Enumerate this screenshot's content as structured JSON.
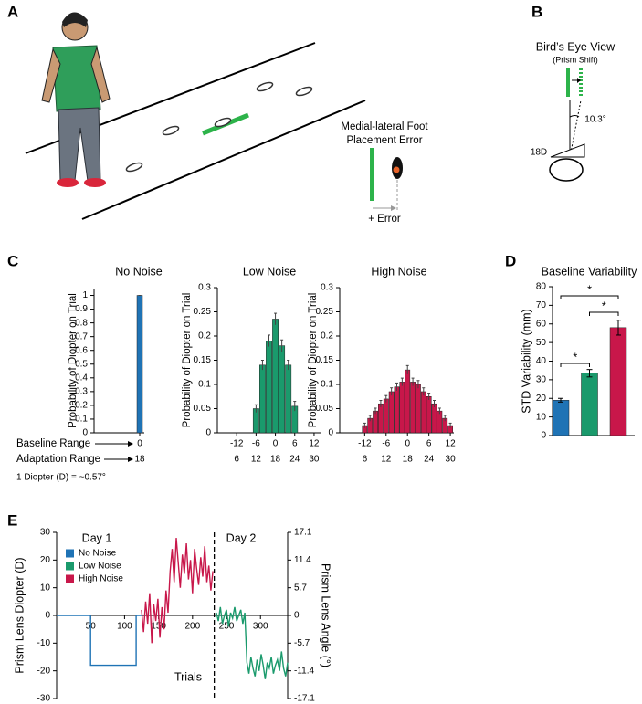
{
  "panel_letters": [
    "A",
    "B",
    "C",
    "D",
    "E"
  ],
  "panel_a": {
    "annotation": [
      "Medial-lateral Foot",
      "Placement Error"
    ],
    "error_label": "+ Error"
  },
  "panel_b": {
    "title": "Bird’s Eye View",
    "subtitle": "(Prism Shift)",
    "angle_label": "10.3°",
    "prism_label": "18D"
  },
  "panel_c_notes": {
    "baseline_label": "Baseline Range",
    "adaptation_label": "Adaptation Range",
    "conversion": "1 Diopter (D) = ~0.57°"
  },
  "chart_data": [
    {
      "type": "histbar",
      "title": "No Noise",
      "y_label": "Probability of Diopter on Trial",
      "color": "#1f73b5",
      "x": [
        0
      ],
      "values": [
        1
      ],
      "errors": [
        0
      ],
      "xlim": [
        -10,
        1
      ],
      "xticks": [
        0
      ],
      "adaptation_ticks": [
        {
          "value": 0,
          "label": "18"
        }
      ],
      "ylim": [
        0,
        1.05
      ],
      "yticks": [
        0,
        0.1,
        0.2,
        0.3,
        0.4,
        0.5,
        0.6,
        0.7,
        0.8,
        0.9,
        1
      ]
    },
    {
      "type": "histbar",
      "title": "Low Noise",
      "y_label": "Probability of Diopter on Trial",
      "color": "#1a9a6c",
      "x": [
        -6,
        -4,
        -2,
        0,
        2,
        4,
        6
      ],
      "values": [
        0.05,
        0.14,
        0.19,
        0.235,
        0.18,
        0.14,
        0.055
      ],
      "errors": [
        0.008,
        0.01,
        0.012,
        0.012,
        0.012,
        0.01,
        0.01
      ],
      "xlim": [
        -18,
        14
      ],
      "xticks": [
        -12,
        -6,
        0,
        6,
        12
      ],
      "adaptation_ticks": [
        {
          "value": -12,
          "label": "6"
        },
        {
          "value": -6,
          "label": "12"
        },
        {
          "value": 0,
          "label": "18"
        },
        {
          "value": 6,
          "label": "24"
        },
        {
          "value": 12,
          "label": "30"
        }
      ],
      "ylim": [
        0,
        0.3
      ],
      "yticks": [
        0,
        0.05,
        0.1,
        0.15,
        0.2,
        0.25,
        0.3
      ]
    },
    {
      "type": "histbar",
      "title": "High Noise",
      "y_label": "Probability of Diopter on Trial",
      "color": "#c8174a",
      "x": [
        -12,
        -10.5,
        -9,
        -7.5,
        -6,
        -4.5,
        -3,
        -1.5,
        0,
        1.5,
        3,
        4.5,
        6,
        7.5,
        9,
        10.5,
        12
      ],
      "values": [
        0.015,
        0.03,
        0.045,
        0.06,
        0.07,
        0.085,
        0.095,
        0.105,
        0.13,
        0.105,
        0.1,
        0.085,
        0.075,
        0.06,
        0.045,
        0.03,
        0.015
      ],
      "errors": [
        0.005,
        0.006,
        0.006,
        0.007,
        0.007,
        0.008,
        0.008,
        0.008,
        0.009,
        0.008,
        0.008,
        0.008,
        0.007,
        0.007,
        0.006,
        0.006,
        0.005
      ],
      "xlim": [
        -19,
        13
      ],
      "xticks": [
        -12,
        -6,
        0,
        6,
        12
      ],
      "adaptation_ticks": [
        {
          "value": -12,
          "label": "6"
        },
        {
          "value": -6,
          "label": "12"
        },
        {
          "value": 0,
          "label": "18"
        },
        {
          "value": 6,
          "label": "24"
        },
        {
          "value": 12,
          "label": "30"
        }
      ],
      "ylim": [
        0,
        0.3
      ],
      "yticks": [
        0,
        0.05,
        0.1,
        0.15,
        0.2,
        0.25,
        0.3
      ]
    },
    {
      "type": "errbar",
      "title": "Baseline Variability",
      "y_label": "STD Variability (mm)",
      "values": [
        19,
        33.5,
        58
      ],
      "errors": [
        1,
        2,
        4
      ],
      "colors": [
        "#1f73b5",
        "#1a9a6c",
        "#c8174a"
      ],
      "significance": [
        "*",
        "*",
        "*"
      ],
      "ylim": [
        0,
        80
      ],
      "yticks": [
        0,
        10,
        20,
        30,
        40,
        50,
        60,
        70,
        80
      ]
    },
    {
      "type": "line",
      "x_label": "Trials",
      "y_label": "Prism Lens Diopter (D)",
      "y2_label": "Prism Lens Angle (°)",
      "annotations": [
        "Day 1",
        "Day 2"
      ],
      "day_boundary": 232,
      "xlim": [
        0,
        340
      ],
      "xticks": [
        50,
        100,
        150,
        200,
        250,
        300
      ],
      "ylim": [
        -30,
        30
      ],
      "yticks": [
        -30,
        -20,
        -10,
        0,
        10,
        20,
        30
      ],
      "y2lim": [
        -17.1,
        17.1
      ],
      "y2ticks": [
        -17.1,
        -11.4,
        -5.7,
        0,
        5.7,
        11.4,
        17.1
      ],
      "series": [
        {
          "name": "No Noise",
          "color": "#1f73b5",
          "x": [
            0,
            50,
            50,
            117,
            117,
            125
          ],
          "values": [
            0,
            0,
            -18,
            -18,
            0,
            0
          ]
        },
        {
          "name": "Low Noise",
          "color": "#1a9a6c",
          "x": [
            235,
            238,
            241,
            244,
            247,
            250,
            253,
            256,
            259,
            262,
            265,
            268,
            271,
            274,
            277,
            280,
            283,
            286,
            289,
            292,
            295,
            298,
            301,
            304,
            307,
            310,
            313,
            316,
            319,
            322,
            325,
            328,
            331,
            334,
            337,
            340
          ],
          "values": [
            1,
            -2,
            3,
            -3,
            0,
            2,
            -4,
            1,
            -1,
            3,
            -2,
            0,
            2,
            -3,
            1,
            -17,
            -21,
            -15,
            -19,
            -22,
            -16,
            -20,
            -14,
            -18,
            -23,
            -17,
            -19,
            -15,
            -21,
            -18,
            -16,
            -20,
            -13,
            -19,
            -22,
            -17
          ]
        },
        {
          "name": "High Noise",
          "color": "#c8174a",
          "x": [
            125,
            128,
            131,
            134,
            137,
            140,
            143,
            146,
            149,
            152,
            155,
            158,
            161,
            164,
            167,
            170,
            173,
            176,
            179,
            182,
            185,
            188,
            191,
            194,
            197,
            200,
            203,
            206,
            209,
            212,
            215,
            218,
            221,
            224,
            227,
            230
          ],
          "values": [
            2,
            -6,
            5,
            -3,
            8,
            -10,
            4,
            -2,
            6,
            -8,
            3,
            -5,
            9,
            1,
            16,
            24,
            12,
            28,
            19,
            10,
            22,
            15,
            26,
            13,
            20,
            8,
            24,
            17,
            11,
            21,
            14,
            25,
            12,
            18,
            9,
            16
          ]
        }
      ]
    }
  ]
}
